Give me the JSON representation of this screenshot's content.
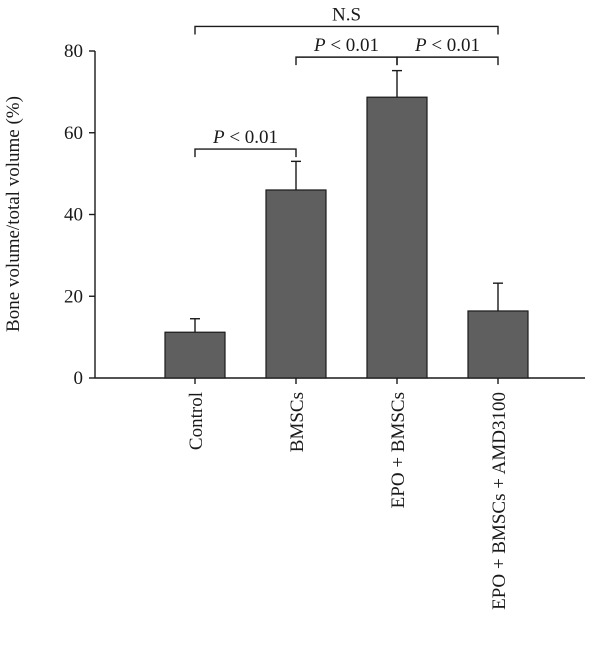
{
  "chart_data": {
    "type": "bar",
    "categories": [
      "Control",
      "BMSCs",
      "EPO + BMSCs",
      "EPO + BMSCs + AMD3100"
    ],
    "values": [
      11.2,
      46,
      68.7,
      16.4
    ],
    "error": [
      3.3,
      7,
      6.5,
      6.8
    ],
    "ylabel": "Bone volume/total volume (%)",
    "ylim": [
      0,
      80
    ],
    "yticks": [
      0,
      20,
      40,
      60,
      80
    ],
    "annotations": [
      {
        "from": 0,
        "to": 1,
        "p_italic": "P",
        "text": " < 0.01",
        "y": 56
      },
      {
        "from": 1,
        "to": 2,
        "p_italic": "P",
        "text": " < 0.01",
        "y": 78.5
      },
      {
        "from": 2,
        "to": 3,
        "p_italic": "P",
        "text": " < 0.01",
        "y": 78.5
      },
      {
        "from": 0,
        "to": 3,
        "p_italic": "",
        "text": "N.S",
        "y": 86
      }
    ]
  }
}
